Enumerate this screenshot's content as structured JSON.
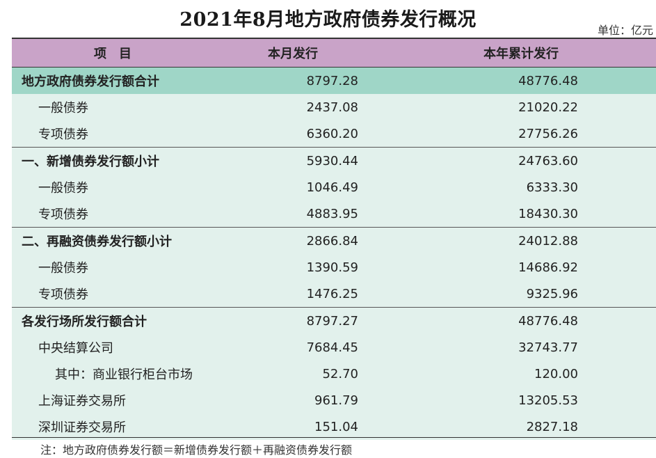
{
  "title": "2021年8月地方政府债券发行概况",
  "unit": "单位：亿元",
  "headers": {
    "item": "项　目",
    "month": "本月发行",
    "ytd": "本年累计发行"
  },
  "rows": [
    {
      "label": "地方政府债券发行额合计",
      "month": "8797.28",
      "ytd": "48776.48"
    },
    {
      "label": "一般债券",
      "month": "2437.08",
      "ytd": "21020.22"
    },
    {
      "label": "专项债券",
      "month": "6360.20",
      "ytd": "27756.26"
    },
    {
      "label": "一、新增债券发行额小计",
      "month": "5930.44",
      "ytd": "24763.60"
    },
    {
      "label": "一般债券",
      "month": "1046.49",
      "ytd": "6333.30"
    },
    {
      "label": "专项债券",
      "month": "4883.95",
      "ytd": "18430.30"
    },
    {
      "label": "二、再融资债券发行额小计",
      "month": "2866.84",
      "ytd": "24012.88"
    },
    {
      "label": "一般债券",
      "month": "1390.59",
      "ytd": "14686.92"
    },
    {
      "label": "专项债券",
      "month": "1476.25",
      "ytd": "9325.96"
    },
    {
      "label": "各发行场所发行额合计",
      "month": "8797.27",
      "ytd": "48776.48"
    },
    {
      "label": "中央结算公司",
      "month": "7684.45",
      "ytd": "32743.77"
    },
    {
      "label": "其中：商业银行柜台市场",
      "month": "52.70",
      "ytd": "120.00"
    },
    {
      "label": "上海证券交易所",
      "month": "961.79",
      "ytd": "13205.53"
    },
    {
      "label": "深圳证券交易所",
      "month": "151.04",
      "ytd": "2827.18"
    }
  ],
  "note": "注：地方政府债券发行额＝新增债券发行额＋再融资债券发行额",
  "colors": {
    "header_bg": "#c9a3c8",
    "total_bg": "#9fd6c7",
    "light_bg": "#e2f1ec"
  }
}
